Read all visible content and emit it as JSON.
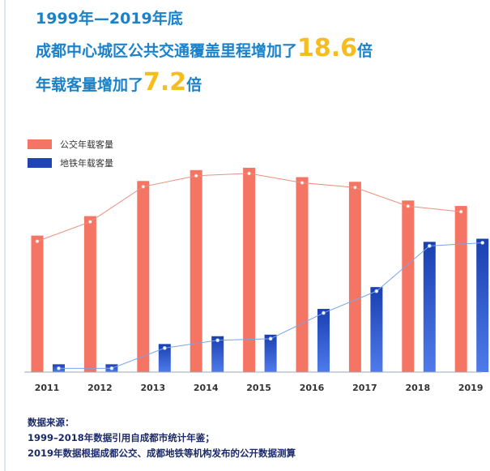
{
  "headline": {
    "line1": "1999年—2019年底",
    "line2_prefix": "成都中心城区公共交通覆盖里程增加了",
    "line2_value": "18.6",
    "line2_suffix": "倍",
    "line3_prefix": "年载客量增加了",
    "line3_value": "7.2",
    "line3_suffix": "倍"
  },
  "colors": {
    "headline": "#1b82c9",
    "highlight": "#f5bd1f",
    "bus_bar": "#f47563",
    "metro_bar": "#1e44b8",
    "source_text": "#1b2a68"
  },
  "chart_data": {
    "type": "bar",
    "categories": [
      "2011",
      "2012",
      "2013",
      "2014",
      "2015",
      "2016",
      "2017",
      "2018",
      "2019"
    ],
    "series": [
      {
        "name": "公交年载客量",
        "values": [
          175,
          200,
          245,
          259,
          262,
          250,
          244,
          220,
          213
        ],
        "color": "#f47563"
      },
      {
        "name": "地铁年载客量",
        "values": [
          10,
          10,
          36,
          46,
          48,
          81,
          109,
          167,
          171
        ],
        "color": "#1e44b8"
      }
    ],
    "overlay": "line-through-bar-tops",
    "axis": "x-baseline-only",
    "ylim": [
      0,
      290
    ],
    "legend": "top-left"
  },
  "source": {
    "title": "数据来源：",
    "line1": "1999–2018年数据引用自成都市统计年鉴；",
    "line2": "2019年数据根据成都公交、成都地铁等机构发布的公开数据测算"
  }
}
